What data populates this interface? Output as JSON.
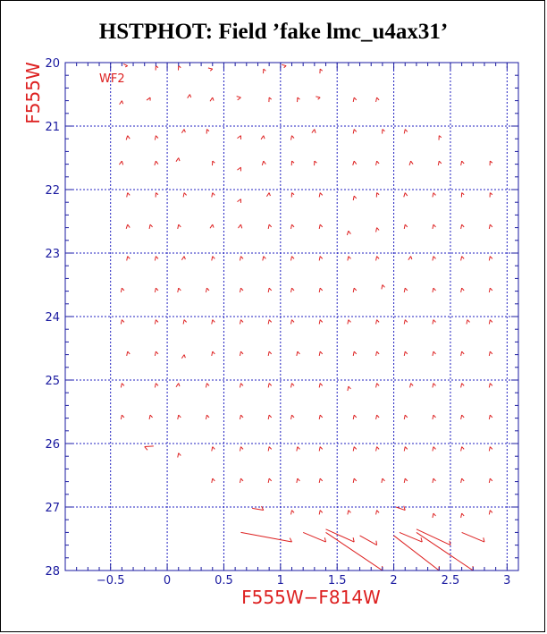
{
  "chart_data": {
    "type": "scatter",
    "title": "HSTPHOT: Field ’fake lmc_u4ax31’",
    "chip_label": "WF2",
    "xlabel": "F555W−F814W",
    "ylabel": "F555W",
    "xlim": [
      -0.9,
      3.1
    ],
    "ylim": [
      20,
      28
    ],
    "y_inverted": true,
    "x_ticks": [
      "−0.5",
      "0",
      "0.5",
      "1",
      "1.5",
      "2",
      "2.5",
      "3"
    ],
    "x_tick_values": [
      -0.5,
      0,
      0.5,
      1,
      1.5,
      2,
      2.5,
      3
    ],
    "y_ticks": [
      "20",
      "21",
      "22",
      "23",
      "24",
      "25",
      "26",
      "27",
      "28"
    ],
    "y_tick_values": [
      20,
      21,
      22,
      23,
      24,
      25,
      26,
      27,
      28
    ],
    "grid": true,
    "colors": {
      "points": "#dd2020",
      "grid": "#2020c0",
      "axis": "#1a1aa0",
      "title": "#000000"
    },
    "marker": "vector",
    "points": [
      {
        "x": -0.35,
        "y": 20.05,
        "dx": -0.02,
        "dy": 0.02
      },
      {
        "x": -0.1,
        "y": 20.05,
        "dx": 0.02,
        "dy": 0.03
      },
      {
        "x": 0.1,
        "y": 20.05,
        "dx": 0.02,
        "dy": 0.03
      },
      {
        "x": 0.4,
        "y": 20.1,
        "dx": -0.02,
        "dy": 0.03
      },
      {
        "x": 0.85,
        "y": 20.1,
        "dx": 0.02,
        "dy": 0.03
      },
      {
        "x": 1.05,
        "y": 20.05,
        "dx": -0.02,
        "dy": 0.03
      },
      {
        "x": 1.35,
        "y": 20.1,
        "dx": 0.02,
        "dy": 0.03
      },
      {
        "x": -0.4,
        "y": 20.6,
        "dx": 0.01,
        "dy": 0.05
      },
      {
        "x": -0.15,
        "y": 20.55,
        "dx": 0.0,
        "dy": 0.05
      },
      {
        "x": 0.2,
        "y": 20.5,
        "dx": 0.01,
        "dy": 0.05
      },
      {
        "x": 0.4,
        "y": 20.55,
        "dx": 0.01,
        "dy": 0.05
      },
      {
        "x": 0.65,
        "y": 20.55,
        "dx": -0.03,
        "dy": 0.04
      },
      {
        "x": 0.9,
        "y": 20.55,
        "dx": 0.02,
        "dy": 0.03
      },
      {
        "x": 1.15,
        "y": 20.55,
        "dx": 0.02,
        "dy": 0.03
      },
      {
        "x": 1.35,
        "y": 20.55,
        "dx": -0.02,
        "dy": 0.03
      },
      {
        "x": 1.65,
        "y": 20.55,
        "dx": 0.02,
        "dy": 0.04
      },
      {
        "x": 1.85,
        "y": 20.55,
        "dx": 0.02,
        "dy": 0.04
      },
      {
        "x": -0.35,
        "y": 21.15,
        "dx": 0.02,
        "dy": 0.05
      },
      {
        "x": -0.1,
        "y": 21.15,
        "dx": 0.02,
        "dy": 0.04
      },
      {
        "x": 0.15,
        "y": 21.05,
        "dx": 0.01,
        "dy": 0.05
      },
      {
        "x": 0.35,
        "y": 21.05,
        "dx": 0.02,
        "dy": 0.03
      },
      {
        "x": 0.65,
        "y": 21.15,
        "dx": 0.0,
        "dy": 0.06
      },
      {
        "x": 0.85,
        "y": 21.15,
        "dx": 0.01,
        "dy": 0.05
      },
      {
        "x": 1.1,
        "y": 21.15,
        "dx": 0.02,
        "dy": 0.04
      },
      {
        "x": 1.3,
        "y": 21.05,
        "dx": 0.01,
        "dy": 0.06
      },
      {
        "x": 1.65,
        "y": 21.05,
        "dx": 0.02,
        "dy": 0.04
      },
      {
        "x": 1.9,
        "y": 21.05,
        "dx": 0.02,
        "dy": 0.03
      },
      {
        "x": 2.1,
        "y": 21.05,
        "dx": 0.02,
        "dy": 0.04
      },
      {
        "x": 2.4,
        "y": 21.15,
        "dx": 0.02,
        "dy": 0.03
      },
      {
        "x": -0.4,
        "y": 21.55,
        "dx": 0.01,
        "dy": 0.06
      },
      {
        "x": -0.1,
        "y": 21.55,
        "dx": 0.02,
        "dy": 0.05
      },
      {
        "x": 0.1,
        "y": 21.5,
        "dx": 0.01,
        "dy": 0.05
      },
      {
        "x": 0.4,
        "y": 21.55,
        "dx": 0.02,
        "dy": 0.03
      },
      {
        "x": 0.65,
        "y": 21.65,
        "dx": 0.0,
        "dy": 0.06
      },
      {
        "x": 0.85,
        "y": 21.55,
        "dx": 0.02,
        "dy": 0.05
      },
      {
        "x": 1.1,
        "y": 21.55,
        "dx": 0.02,
        "dy": 0.03
      },
      {
        "x": 1.3,
        "y": 21.55,
        "dx": 0.02,
        "dy": 0.03
      },
      {
        "x": 1.65,
        "y": 21.55,
        "dx": 0.02,
        "dy": 0.05
      },
      {
        "x": 1.85,
        "y": 21.55,
        "dx": 0.02,
        "dy": 0.04
      },
      {
        "x": 2.15,
        "y": 21.55,
        "dx": 0.02,
        "dy": 0.05
      },
      {
        "x": 2.4,
        "y": 21.55,
        "dx": 0.02,
        "dy": 0.04
      },
      {
        "x": 2.6,
        "y": 21.55,
        "dx": 0.02,
        "dy": 0.04
      },
      {
        "x": 2.85,
        "y": 21.55,
        "dx": 0.02,
        "dy": 0.03
      },
      {
        "x": -0.35,
        "y": 22.05,
        "dx": 0.02,
        "dy": 0.04
      },
      {
        "x": -0.1,
        "y": 22.05,
        "dx": 0.02,
        "dy": 0.03
      },
      {
        "x": 0.15,
        "y": 22.05,
        "dx": 0.02,
        "dy": 0.04
      },
      {
        "x": 0.4,
        "y": 22.05,
        "dx": 0.02,
        "dy": 0.04
      },
      {
        "x": 0.65,
        "y": 22.15,
        "dx": 0.0,
        "dy": 0.06
      },
      {
        "x": 0.9,
        "y": 22.05,
        "dx": 0.01,
        "dy": 0.05
      },
      {
        "x": 1.1,
        "y": 22.05,
        "dx": 0.02,
        "dy": 0.03
      },
      {
        "x": 1.35,
        "y": 22.05,
        "dx": 0.02,
        "dy": 0.04
      },
      {
        "x": 1.65,
        "y": 22.1,
        "dx": 0.02,
        "dy": 0.04
      },
      {
        "x": 1.85,
        "y": 22.05,
        "dx": 0.02,
        "dy": 0.03
      },
      {
        "x": 2.1,
        "y": 22.05,
        "dx": 0.02,
        "dy": 0.05
      },
      {
        "x": 2.35,
        "y": 22.05,
        "dx": 0.02,
        "dy": 0.04
      },
      {
        "x": 2.6,
        "y": 22.05,
        "dx": 0.02,
        "dy": 0.03
      },
      {
        "x": 2.85,
        "y": 22.05,
        "dx": 0.02,
        "dy": 0.03
      },
      {
        "x": -0.35,
        "y": 22.55,
        "dx": 0.02,
        "dy": 0.05
      },
      {
        "x": -0.15,
        "y": 22.55,
        "dx": 0.02,
        "dy": 0.04
      },
      {
        "x": 0.1,
        "y": 22.55,
        "dx": 0.02,
        "dy": 0.04
      },
      {
        "x": 0.4,
        "y": 22.55,
        "dx": 0.01,
        "dy": 0.05
      },
      {
        "x": 0.65,
        "y": 22.55,
        "dx": 0.01,
        "dy": 0.06
      },
      {
        "x": 0.9,
        "y": 22.55,
        "dx": 0.02,
        "dy": 0.04
      },
      {
        "x": 1.1,
        "y": 22.55,
        "dx": 0.02,
        "dy": 0.04
      },
      {
        "x": 1.35,
        "y": 22.55,
        "dx": 0.02,
        "dy": 0.04
      },
      {
        "x": 1.6,
        "y": 22.65,
        "dx": 0.02,
        "dy": 0.05
      },
      {
        "x": 1.85,
        "y": 22.6,
        "dx": 0.02,
        "dy": 0.04
      },
      {
        "x": 2.1,
        "y": 22.55,
        "dx": 0.02,
        "dy": 0.04
      },
      {
        "x": 2.35,
        "y": 22.55,
        "dx": 0.02,
        "dy": 0.04
      },
      {
        "x": 2.6,
        "y": 22.55,
        "dx": 0.02,
        "dy": 0.04
      },
      {
        "x": 2.85,
        "y": 22.55,
        "dx": 0.02,
        "dy": 0.04
      },
      {
        "x": -0.35,
        "y": 23.05,
        "dx": 0.02,
        "dy": 0.04
      },
      {
        "x": -0.1,
        "y": 23.05,
        "dx": 0.02,
        "dy": 0.04
      },
      {
        "x": 0.15,
        "y": 23.05,
        "dx": 0.01,
        "dy": 0.05
      },
      {
        "x": 0.4,
        "y": 23.05,
        "dx": 0.02,
        "dy": 0.04
      },
      {
        "x": 0.65,
        "y": 23.05,
        "dx": 0.02,
        "dy": 0.04
      },
      {
        "x": 0.85,
        "y": 23.05,
        "dx": 0.02,
        "dy": 0.04
      },
      {
        "x": 1.1,
        "y": 23.05,
        "dx": 0.02,
        "dy": 0.04
      },
      {
        "x": 1.35,
        "y": 23.05,
        "dx": 0.02,
        "dy": 0.04
      },
      {
        "x": 1.6,
        "y": 23.05,
        "dx": 0.02,
        "dy": 0.04
      },
      {
        "x": 1.85,
        "y": 23.05,
        "dx": 0.02,
        "dy": 0.04
      },
      {
        "x": 2.15,
        "y": 23.05,
        "dx": 0.01,
        "dy": 0.05
      },
      {
        "x": 2.35,
        "y": 23.05,
        "dx": 0.02,
        "dy": 0.04
      },
      {
        "x": 2.6,
        "y": 23.05,
        "dx": 0.02,
        "dy": 0.04
      },
      {
        "x": 2.85,
        "y": 23.05,
        "dx": 0.02,
        "dy": 0.04
      },
      {
        "x": -0.4,
        "y": 23.55,
        "dx": 0.02,
        "dy": 0.04
      },
      {
        "x": -0.1,
        "y": 23.55,
        "dx": 0.02,
        "dy": 0.04
      },
      {
        "x": 0.1,
        "y": 23.55,
        "dx": 0.02,
        "dy": 0.04
      },
      {
        "x": 0.35,
        "y": 23.55,
        "dx": 0.02,
        "dy": 0.04
      },
      {
        "x": 0.65,
        "y": 23.55,
        "dx": 0.02,
        "dy": 0.04
      },
      {
        "x": 0.9,
        "y": 23.55,
        "dx": 0.02,
        "dy": 0.04
      },
      {
        "x": 1.1,
        "y": 23.55,
        "dx": 0.02,
        "dy": 0.04
      },
      {
        "x": 1.35,
        "y": 23.55,
        "dx": 0.02,
        "dy": 0.04
      },
      {
        "x": 1.65,
        "y": 23.55,
        "dx": 0.02,
        "dy": 0.04
      },
      {
        "x": 1.9,
        "y": 23.5,
        "dx": 0.02,
        "dy": 0.04
      },
      {
        "x": 2.1,
        "y": 23.55,
        "dx": 0.02,
        "dy": 0.04
      },
      {
        "x": 2.35,
        "y": 23.55,
        "dx": 0.02,
        "dy": 0.04
      },
      {
        "x": 2.6,
        "y": 23.55,
        "dx": 0.02,
        "dy": 0.04
      },
      {
        "x": 2.85,
        "y": 23.55,
        "dx": 0.02,
        "dy": 0.04
      },
      {
        "x": -0.4,
        "y": 24.05,
        "dx": 0.02,
        "dy": 0.04
      },
      {
        "x": -0.1,
        "y": 24.05,
        "dx": 0.02,
        "dy": 0.04
      },
      {
        "x": 0.15,
        "y": 24.05,
        "dx": 0.02,
        "dy": 0.04
      },
      {
        "x": 0.4,
        "y": 24.05,
        "dx": 0.02,
        "dy": 0.04
      },
      {
        "x": 0.65,
        "y": 24.05,
        "dx": 0.02,
        "dy": 0.04
      },
      {
        "x": 0.9,
        "y": 24.05,
        "dx": 0.02,
        "dy": 0.04
      },
      {
        "x": 1.1,
        "y": 24.05,
        "dx": 0.02,
        "dy": 0.04
      },
      {
        "x": 1.35,
        "y": 24.05,
        "dx": 0.02,
        "dy": 0.04
      },
      {
        "x": 1.6,
        "y": 24.05,
        "dx": 0.02,
        "dy": 0.04
      },
      {
        "x": 1.85,
        "y": 24.05,
        "dx": 0.02,
        "dy": 0.04
      },
      {
        "x": 2.1,
        "y": 24.05,
        "dx": 0.02,
        "dy": 0.04
      },
      {
        "x": 2.35,
        "y": 24.05,
        "dx": 0.02,
        "dy": 0.04
      },
      {
        "x": 2.65,
        "y": 24.05,
        "dx": 0.02,
        "dy": 0.04
      },
      {
        "x": 2.85,
        "y": 24.05,
        "dx": 0.02,
        "dy": 0.04
      },
      {
        "x": -0.35,
        "y": 24.55,
        "dx": 0.02,
        "dy": 0.04
      },
      {
        "x": -0.1,
        "y": 24.55,
        "dx": 0.02,
        "dy": 0.04
      },
      {
        "x": 0.15,
        "y": 24.6,
        "dx": 0.01,
        "dy": 0.05
      },
      {
        "x": 0.4,
        "y": 24.55,
        "dx": 0.02,
        "dy": 0.04
      },
      {
        "x": 0.65,
        "y": 24.55,
        "dx": 0.02,
        "dy": 0.04
      },
      {
        "x": 0.9,
        "y": 24.55,
        "dx": 0.02,
        "dy": 0.04
      },
      {
        "x": 1.15,
        "y": 24.55,
        "dx": 0.02,
        "dy": 0.04
      },
      {
        "x": 1.35,
        "y": 24.55,
        "dx": 0.02,
        "dy": 0.04
      },
      {
        "x": 1.65,
        "y": 24.55,
        "dx": 0.02,
        "dy": 0.04
      },
      {
        "x": 1.85,
        "y": 24.55,
        "dx": 0.02,
        "dy": 0.04
      },
      {
        "x": 2.1,
        "y": 24.55,
        "dx": 0.02,
        "dy": 0.04
      },
      {
        "x": 2.35,
        "y": 24.55,
        "dx": 0.02,
        "dy": 0.04
      },
      {
        "x": 2.6,
        "y": 24.55,
        "dx": 0.02,
        "dy": 0.04
      },
      {
        "x": 2.85,
        "y": 24.55,
        "dx": 0.02,
        "dy": 0.04
      },
      {
        "x": -0.4,
        "y": 25.05,
        "dx": 0.02,
        "dy": 0.04
      },
      {
        "x": -0.1,
        "y": 25.05,
        "dx": 0.02,
        "dy": 0.04
      },
      {
        "x": 0.1,
        "y": 25.05,
        "dx": 0.01,
        "dy": 0.05
      },
      {
        "x": 0.35,
        "y": 25.05,
        "dx": 0.02,
        "dy": 0.04
      },
      {
        "x": 0.65,
        "y": 25.05,
        "dx": 0.02,
        "dy": 0.04
      },
      {
        "x": 0.9,
        "y": 25.05,
        "dx": 0.02,
        "dy": 0.04
      },
      {
        "x": 1.1,
        "y": 25.05,
        "dx": 0.02,
        "dy": 0.04
      },
      {
        "x": 1.35,
        "y": 25.05,
        "dx": 0.02,
        "dy": 0.04
      },
      {
        "x": 1.6,
        "y": 25.1,
        "dx": 0.02,
        "dy": 0.04
      },
      {
        "x": 1.85,
        "y": 25.05,
        "dx": 0.02,
        "dy": 0.04
      },
      {
        "x": 2.15,
        "y": 25.05,
        "dx": 0.02,
        "dy": 0.04
      },
      {
        "x": 2.35,
        "y": 25.05,
        "dx": 0.02,
        "dy": 0.04
      },
      {
        "x": 2.6,
        "y": 25.05,
        "dx": 0.02,
        "dy": 0.04
      },
      {
        "x": 2.85,
        "y": 25.05,
        "dx": 0.02,
        "dy": 0.04
      },
      {
        "x": -0.4,
        "y": 25.55,
        "dx": 0.02,
        "dy": 0.04
      },
      {
        "x": -0.15,
        "y": 25.55,
        "dx": 0.02,
        "dy": 0.04
      },
      {
        "x": 0.1,
        "y": 25.55,
        "dx": 0.02,
        "dy": 0.04
      },
      {
        "x": 0.35,
        "y": 25.55,
        "dx": 0.02,
        "dy": 0.04
      },
      {
        "x": 0.65,
        "y": 25.55,
        "dx": 0.02,
        "dy": 0.04
      },
      {
        "x": 0.9,
        "y": 25.55,
        "dx": 0.02,
        "dy": 0.04
      },
      {
        "x": 1.1,
        "y": 25.55,
        "dx": 0.02,
        "dy": 0.04
      },
      {
        "x": 1.35,
        "y": 25.55,
        "dx": 0.02,
        "dy": 0.04
      },
      {
        "x": 1.65,
        "y": 25.55,
        "dx": 0.02,
        "dy": 0.04
      },
      {
        "x": 1.85,
        "y": 25.55,
        "dx": 0.02,
        "dy": 0.04
      },
      {
        "x": 2.1,
        "y": 25.55,
        "dx": 0.02,
        "dy": 0.04
      },
      {
        "x": 2.35,
        "y": 25.55,
        "dx": 0.02,
        "dy": 0.04
      },
      {
        "x": 2.6,
        "y": 25.55,
        "dx": 0.02,
        "dy": 0.04
      },
      {
        "x": 2.85,
        "y": 25.55,
        "dx": 0.02,
        "dy": 0.04
      },
      {
        "x": -0.2,
        "y": 26.05,
        "dx": 0.08,
        "dy": -0.01
      },
      {
        "x": 0.1,
        "y": 26.15,
        "dx": 0.02,
        "dy": 0.04
      },
      {
        "x": 0.4,
        "y": 26.05,
        "dx": 0.02,
        "dy": 0.04
      },
      {
        "x": 0.65,
        "y": 26.05,
        "dx": 0.02,
        "dy": 0.04
      },
      {
        "x": 0.9,
        "y": 26.05,
        "dx": 0.02,
        "dy": 0.04
      },
      {
        "x": 1.15,
        "y": 26.05,
        "dx": 0.02,
        "dy": 0.04
      },
      {
        "x": 1.35,
        "y": 26.05,
        "dx": 0.02,
        "dy": 0.04
      },
      {
        "x": 1.65,
        "y": 26.05,
        "dx": 0.02,
        "dy": 0.04
      },
      {
        "x": 1.85,
        "y": 26.05,
        "dx": 0.02,
        "dy": 0.04
      },
      {
        "x": 2.1,
        "y": 26.05,
        "dx": 0.02,
        "dy": 0.04
      },
      {
        "x": 2.35,
        "y": 26.05,
        "dx": 0.02,
        "dy": 0.04
      },
      {
        "x": 2.6,
        "y": 26.05,
        "dx": 0.02,
        "dy": 0.04
      },
      {
        "x": 2.85,
        "y": 26.05,
        "dx": 0.02,
        "dy": 0.04
      },
      {
        "x": 0.4,
        "y": 26.55,
        "dx": 0.02,
        "dy": 0.04
      },
      {
        "x": 0.65,
        "y": 26.55,
        "dx": 0.02,
        "dy": 0.04
      },
      {
        "x": 0.9,
        "y": 26.55,
        "dx": 0.02,
        "dy": 0.04
      },
      {
        "x": 1.15,
        "y": 26.55,
        "dx": 0.02,
        "dy": 0.04
      },
      {
        "x": 1.35,
        "y": 26.55,
        "dx": 0.02,
        "dy": 0.04
      },
      {
        "x": 1.65,
        "y": 26.55,
        "dx": 0.02,
        "dy": 0.04
      },
      {
        "x": 1.9,
        "y": 26.55,
        "dx": 0.02,
        "dy": 0.04
      },
      {
        "x": 2.1,
        "y": 26.55,
        "dx": 0.02,
        "dy": 0.04
      },
      {
        "x": 2.35,
        "y": 26.55,
        "dx": 0.02,
        "dy": 0.04
      },
      {
        "x": 2.6,
        "y": 26.55,
        "dx": 0.02,
        "dy": 0.04
      },
      {
        "x": 2.85,
        "y": 26.55,
        "dx": 0.02,
        "dy": 0.04
      },
      {
        "x": 0.85,
        "y": 27.05,
        "dx": -0.1,
        "dy": -0.03
      },
      {
        "x": 1.1,
        "y": 27.05,
        "dx": 0.02,
        "dy": 0.04
      },
      {
        "x": 1.35,
        "y": 27.05,
        "dx": 0.02,
        "dy": 0.04
      },
      {
        "x": 1.6,
        "y": 27.05,
        "dx": 0.02,
        "dy": 0.04
      },
      {
        "x": 1.85,
        "y": 27.05,
        "dx": 0.02,
        "dy": 0.04
      },
      {
        "x": 2.1,
        "y": 27.05,
        "dx": -0.08,
        "dy": -0.05
      },
      {
        "x": 2.35,
        "y": 27.1,
        "dx": 0.02,
        "dy": 0.04
      },
      {
        "x": 2.6,
        "y": 27.1,
        "dx": 0.02,
        "dy": 0.04
      },
      {
        "x": 2.85,
        "y": 27.05,
        "dx": 0.02,
        "dy": 0.04
      },
      {
        "x": 1.1,
        "y": 27.55,
        "dx": -0.45,
        "dy": -0.15
      },
      {
        "x": 1.4,
        "y": 27.55,
        "dx": -0.2,
        "dy": -0.15
      },
      {
        "x": 1.65,
        "y": 27.55,
        "dx": -0.25,
        "dy": -0.2
      },
      {
        "x": 1.85,
        "y": 27.6,
        "dx": -0.15,
        "dy": -0.15
      },
      {
        "x": 1.9,
        "y": 28.0,
        "dx": -0.5,
        "dy": -0.6
      },
      {
        "x": 2.25,
        "y": 27.55,
        "dx": -0.2,
        "dy": -0.15
      },
      {
        "x": 2.5,
        "y": 27.6,
        "dx": -0.3,
        "dy": -0.25
      },
      {
        "x": 2.8,
        "y": 27.55,
        "dx": -0.2,
        "dy": -0.15
      },
      {
        "x": 2.7,
        "y": 28.0,
        "dx": -0.5,
        "dy": -0.6
      },
      {
        "x": 2.4,
        "y": 28.0,
        "dx": -0.4,
        "dy": -0.55
      }
    ]
  }
}
